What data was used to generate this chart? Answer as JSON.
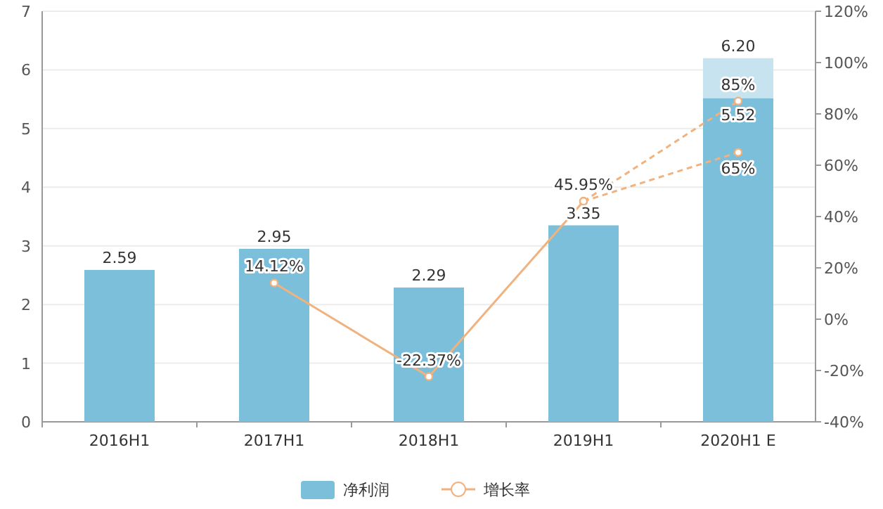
{
  "chart_data": {
    "type": "bar",
    "categories": [
      "2016H1",
      "2017H1",
      "2018H1",
      "2019H1",
      "2020H1 E"
    ],
    "stacked": true,
    "totals": [
      null,
      null,
      null,
      null,
      "6.20"
    ],
    "ylim": [
      0,
      7
    ],
    "yticks": [
      0,
      1,
      2,
      3,
      4,
      5,
      6,
      7
    ],
    "y2lim": [
      -40,
      120
    ],
    "y2ticks": [
      {
        "value": -40,
        "label": "-40%"
      },
      {
        "value": -20,
        "label": "-20%"
      },
      {
        "value": 0,
        "label": "0%"
      },
      {
        "value": 20,
        "label": "20%"
      },
      {
        "value": 40,
        "label": "40%"
      },
      {
        "value": 60,
        "label": "60%"
      },
      {
        "value": 80,
        "label": "80%"
      },
      {
        "value": 100,
        "label": "100%"
      },
      {
        "value": 120,
        "label": "120%"
      }
    ],
    "grid": "y",
    "legend": "bottom",
    "marker": "circle",
    "series": [
      {
        "name": "净利润",
        "color": "#7bbfdb",
        "values": [
          2.59,
          2.95,
          2.29,
          3.35,
          5.52
        ],
        "value_labels": [
          "2.59",
          "2.95",
          "2.29",
          "3.35",
          "5.52"
        ]
      },
      {
        "color": "#c6e3ef",
        "values": [
          null,
          null,
          null,
          null,
          0.68
        ]
      },
      {
        "name": "增长率",
        "type": "line",
        "axis": "y2",
        "color": "#f0b27e",
        "line_style": "solid",
        "values": [
          null,
          14.12,
          -22.37,
          45.95,
          null
        ],
        "value_labels": [
          null,
          "14.12%",
          "-22.37%",
          "45.95%",
          null
        ]
      },
      {
        "type": "line",
        "axis": "y2",
        "color": "#f0b27e",
        "line_style": "dashed",
        "values": [
          null,
          null,
          null,
          45.95,
          85
        ],
        "value_labels": [
          null,
          null,
          null,
          null,
          "85%"
        ]
      },
      {
        "type": "line",
        "axis": "y2",
        "color": "#f0b27e",
        "line_style": "dashed",
        "values": [
          null,
          null,
          null,
          45.95,
          65
        ],
        "value_labels": [
          null,
          null,
          null,
          null,
          "65%"
        ]
      }
    ]
  }
}
